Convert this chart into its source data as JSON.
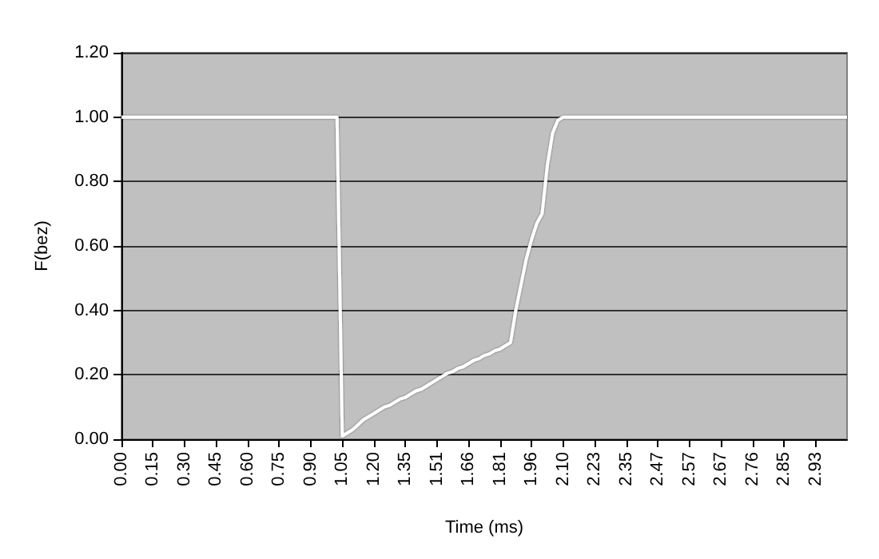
{
  "chart_data": {
    "type": "line",
    "xlabel": "Time (ms)",
    "ylabel": "F(bez)",
    "categories": [
      "0.00",
      null,
      null,
      null,
      null,
      null,
      "0.15",
      null,
      null,
      null,
      null,
      null,
      "0.30",
      null,
      null,
      null,
      null,
      null,
      "0.45",
      null,
      null,
      null,
      null,
      null,
      "0.60",
      null,
      null,
      null,
      null,
      null,
      "0.75",
      null,
      null,
      null,
      null,
      null,
      "0.90",
      null,
      null,
      null,
      null,
      null,
      "1.05",
      null,
      null,
      null,
      null,
      null,
      "1.20",
      null,
      null,
      null,
      null,
      null,
      "1.35",
      null,
      null,
      null,
      null,
      null,
      "1.51",
      null,
      null,
      null,
      null,
      null,
      "1.66",
      null,
      null,
      null,
      null,
      null,
      "1.81",
      null,
      null,
      null,
      null,
      null,
      "1.96",
      null,
      null,
      null,
      null,
      null,
      "2.10",
      null,
      null,
      null,
      null,
      null,
      "2.23",
      null,
      null,
      null,
      null,
      null,
      "2.35",
      null,
      null,
      null,
      null,
      null,
      "2.47",
      null,
      null,
      null,
      null,
      null,
      "2.57",
      null,
      null,
      null,
      null,
      null,
      "2.67",
      null,
      null,
      null,
      null,
      null,
      "2.76",
      null,
      null,
      null,
      null,
      null,
      "2.85",
      null,
      null,
      null,
      null,
      null,
      "2.93",
      null,
      null,
      null,
      null,
      null,
      null
    ],
    "series": [
      {
        "color": "#ffffff",
        "values": [
          1,
          1,
          1,
          1,
          1,
          1,
          1,
          1,
          1,
          1,
          1,
          1,
          1,
          1,
          1,
          1,
          1,
          1,
          1,
          1,
          1,
          1,
          1,
          1,
          1,
          1,
          1,
          1,
          1,
          1,
          1,
          1,
          1,
          1,
          1,
          1,
          1,
          1,
          1,
          1,
          1,
          1,
          0.01,
          0.02,
          0.03,
          0.045,
          0.06,
          0.07,
          0.08,
          0.09,
          0.1,
          0.105,
          0.115,
          0.125,
          0.13,
          0.14,
          0.15,
          0.155,
          0.165,
          0.175,
          0.185,
          0.195,
          0.205,
          0.21,
          0.22,
          0.225,
          0.235,
          0.245,
          0.25,
          0.26,
          0.265,
          0.275,
          0.28,
          0.29,
          0.3,
          0.4,
          0.48,
          0.56,
          0.62,
          0.67,
          0.7,
          0.85,
          0.95,
          0.99,
          1,
          1,
          1,
          1,
          1,
          1,
          1,
          1,
          1,
          1,
          1,
          1,
          1,
          1,
          1,
          1,
          1,
          1,
          1,
          1,
          1,
          1,
          1,
          1,
          1,
          1,
          1,
          1,
          1,
          1,
          1,
          1,
          1,
          1,
          1,
          1,
          1,
          1,
          1,
          1,
          1,
          1,
          1,
          1,
          1,
          1,
          1,
          1,
          1,
          1,
          1,
          1,
          1,
          1,
          1
        ]
      }
    ],
    "ylim": [
      0,
      1.2
    ],
    "yticks": [
      {
        "value": 0,
        "label": "0.00"
      },
      {
        "value": 0.2,
        "label": "0.20"
      },
      {
        "value": 0.4,
        "label": "0.40"
      },
      {
        "value": 0.6,
        "label": "0.60"
      },
      {
        "value": 0.8,
        "label": "0.80"
      },
      {
        "value": 1,
        "label": "1.00"
      },
      {
        "value": 1.2,
        "label": "1.20"
      }
    ],
    "grid": "y",
    "marker": "none",
    "line_style": "solid"
  }
}
